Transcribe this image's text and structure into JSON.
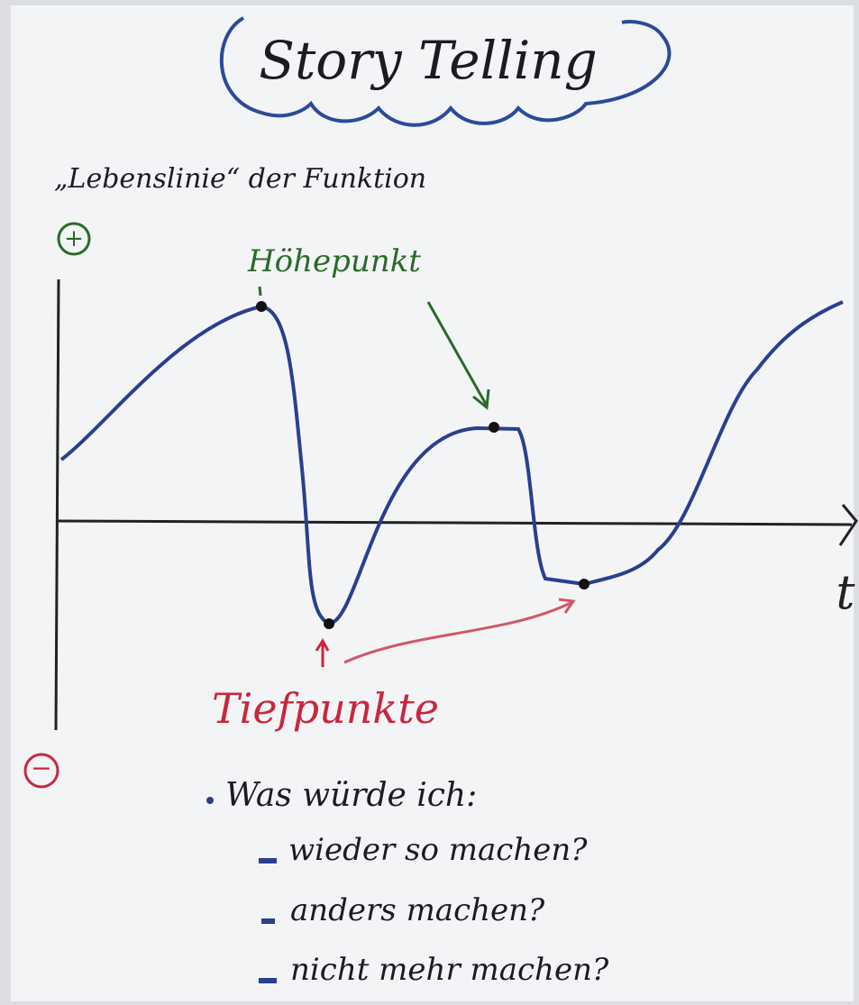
{
  "title": "Story Telling",
  "subtitle": "„Lebenslinie“ der Funktion",
  "axis": {
    "plus": "+",
    "minus": "−",
    "x_label": "t"
  },
  "annotations": {
    "high": "Höhepunkt",
    "low": "Tiefpunkte"
  },
  "questions": {
    "intro": "Was würde ich:",
    "items": [
      "wieder so machen?",
      "anders machen?",
      "nicht mehr machen?"
    ]
  }
}
